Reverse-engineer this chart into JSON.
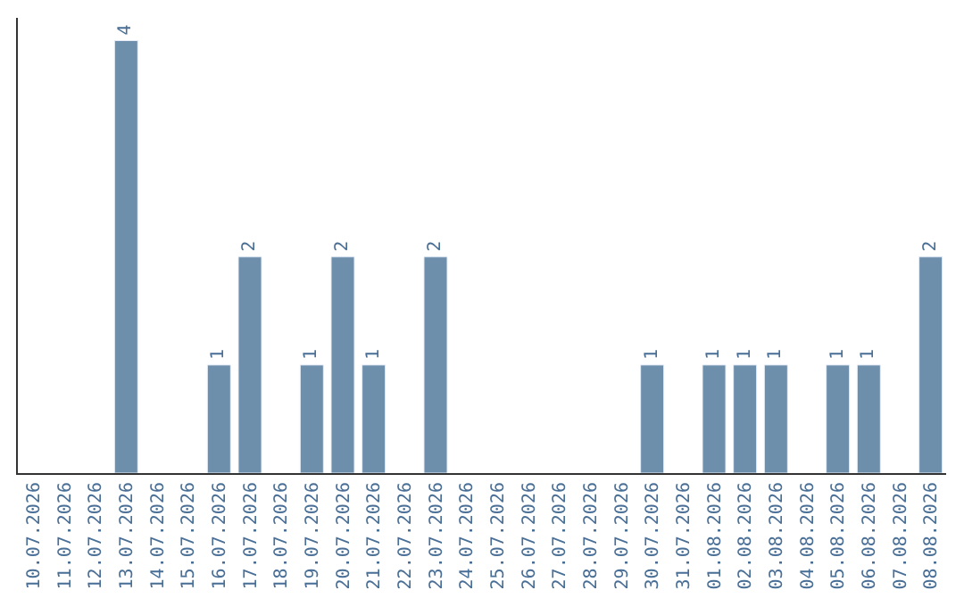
{
  "chart_data": {
    "type": "bar",
    "categories": [
      "10.07.2026",
      "11.07.2026",
      "12.07.2026",
      "13.07.2026",
      "14.07.2026",
      "15.07.2026",
      "16.07.2026",
      "17.07.2026",
      "18.07.2026",
      "19.07.2026",
      "20.07.2026",
      "21.07.2026",
      "22.07.2026",
      "23.07.2026",
      "24.07.2026",
      "25.07.2026",
      "26.07.2026",
      "27.07.2026",
      "28.07.2026",
      "29.07.2026",
      "30.07.2026",
      "31.07.2026",
      "01.08.2026",
      "02.08.2026",
      "03.08.2026",
      "04.08.2026",
      "05.08.2026",
      "06.08.2026",
      "07.08.2026",
      "08.08.2026"
    ],
    "values": [
      null,
      null,
      null,
      4,
      null,
      null,
      1,
      2,
      null,
      1,
      2,
      1,
      null,
      2,
      null,
      null,
      null,
      null,
      null,
      null,
      1,
      null,
      1,
      1,
      1,
      null,
      1,
      1,
      null,
      2
    ],
    "value_labels": [
      null,
      null,
      null,
      "4",
      null,
      null,
      "1",
      "2",
      null,
      "1",
      "2",
      "1",
      null,
      "2",
      null,
      null,
      null,
      null,
      null,
      null,
      "1",
      null,
      "1",
      "1",
      "1",
      null,
      "1",
      "1",
      null,
      "2"
    ],
    "color": "#6e8fac",
    "tick_labels": "x"
  }
}
